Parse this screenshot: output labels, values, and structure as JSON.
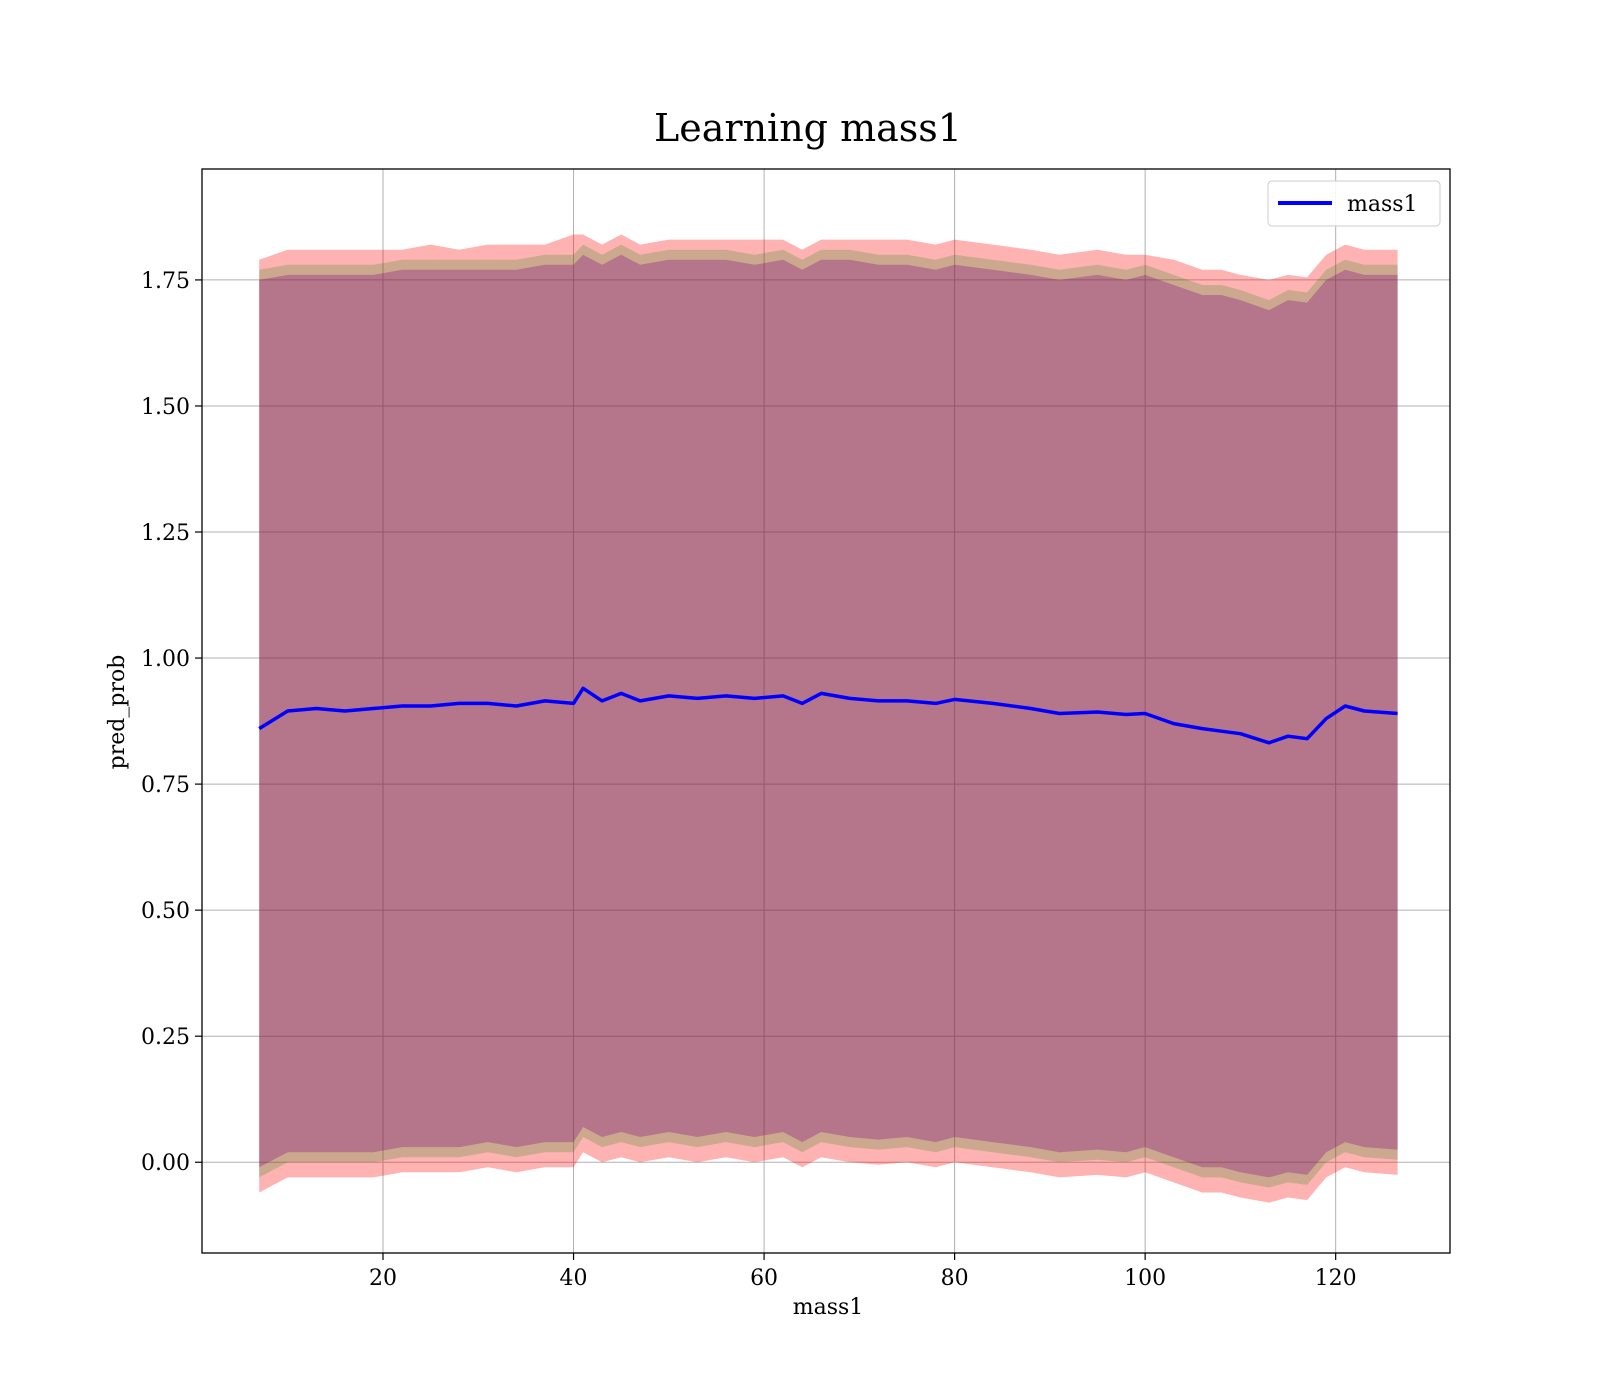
{
  "chart_data": {
    "type": "line",
    "title": "Learning mass1",
    "xlabel": "mass1",
    "ylabel": "pred_prob",
    "xlim": [
      1.0,
      132.0
    ],
    "ylim": [
      -0.18,
      1.97
    ],
    "xticks": [
      20,
      40,
      60,
      80,
      100,
      120
    ],
    "xtick_labels": [
      "20",
      "40",
      "60",
      "80",
      "100",
      "120"
    ],
    "yticks": [
      0.0,
      0.25,
      0.5,
      0.75,
      1.0,
      1.25,
      1.5,
      1.75
    ],
    "ytick_labels": [
      "0.00",
      "0.25",
      "0.50",
      "0.75",
      "1.00",
      "1.25",
      "1.50",
      "1.75"
    ],
    "grid": true,
    "legend_position": "top-right",
    "series": [
      {
        "name": "mass1",
        "color": "#0000ff",
        "x": [
          7,
          10,
          13,
          16,
          19,
          22,
          25,
          28,
          31,
          34,
          37,
          40,
          41,
          43,
          45,
          47,
          50,
          53,
          56,
          59,
          62,
          64,
          66,
          69,
          72,
          75,
          78,
          80,
          84,
          88,
          91,
          95,
          98,
          100,
          103,
          106,
          108,
          110,
          113,
          115,
          117,
          119,
          121,
          123,
          126.5
        ],
        "values": [
          0.86,
          0.895,
          0.9,
          0.895,
          0.9,
          0.905,
          0.905,
          0.91,
          0.91,
          0.905,
          0.915,
          0.91,
          0.94,
          0.915,
          0.93,
          0.915,
          0.925,
          0.92,
          0.925,
          0.92,
          0.925,
          0.91,
          0.93,
          0.92,
          0.915,
          0.915,
          0.91,
          0.918,
          0.91,
          0.9,
          0.89,
          0.893,
          0.888,
          0.89,
          0.87,
          0.86,
          0.855,
          0.85,
          0.832,
          0.845,
          0.84,
          0.88,
          0.905,
          0.895,
          0.89
        ]
      }
    ],
    "bands": [
      {
        "color": "#ff0000",
        "opacity": 0.3,
        "x": [
          7,
          10,
          13,
          16,
          19,
          22,
          25,
          28,
          31,
          34,
          37,
          40,
          41,
          43,
          45,
          47,
          50,
          53,
          56,
          59,
          62,
          64,
          66,
          69,
          72,
          75,
          78,
          80,
          84,
          88,
          91,
          95,
          98,
          100,
          103,
          106,
          108,
          110,
          113,
          115,
          117,
          119,
          121,
          123,
          126.5
        ],
        "upper": [
          1.79,
          1.81,
          1.81,
          1.81,
          1.81,
          1.81,
          1.82,
          1.81,
          1.82,
          1.82,
          1.82,
          1.84,
          1.84,
          1.82,
          1.84,
          1.82,
          1.83,
          1.83,
          1.83,
          1.83,
          1.83,
          1.81,
          1.83,
          1.83,
          1.83,
          1.83,
          1.82,
          1.83,
          1.82,
          1.81,
          1.8,
          1.81,
          1.8,
          1.8,
          1.79,
          1.77,
          1.77,
          1.76,
          1.75,
          1.76,
          1.755,
          1.8,
          1.82,
          1.81,
          1.81
        ],
        "lower": [
          -0.06,
          -0.03,
          -0.03,
          -0.03,
          -0.03,
          -0.02,
          -0.02,
          -0.02,
          -0.01,
          -0.02,
          -0.01,
          -0.01,
          0.02,
          0.0,
          0.01,
          0.0,
          0.01,
          0.0,
          0.01,
          0.0,
          0.01,
          -0.01,
          0.01,
          0.0,
          -0.005,
          0.0,
          -0.01,
          0.0,
          -0.01,
          -0.02,
          -0.03,
          -0.025,
          -0.03,
          -0.02,
          -0.04,
          -0.06,
          -0.06,
          -0.07,
          -0.08,
          -0.07,
          -0.075,
          -0.03,
          -0.01,
          -0.02,
          -0.025
        ]
      },
      {
        "color": "#008000",
        "opacity": 0.2,
        "x": [
          7,
          10,
          13,
          16,
          19,
          22,
          25,
          28,
          31,
          34,
          37,
          40,
          41,
          43,
          45,
          47,
          50,
          53,
          56,
          59,
          62,
          64,
          66,
          69,
          72,
          75,
          78,
          80,
          84,
          88,
          91,
          95,
          98,
          100,
          103,
          106,
          108,
          110,
          113,
          115,
          117,
          119,
          121,
          123,
          126.5
        ],
        "upper": [
          1.77,
          1.78,
          1.78,
          1.78,
          1.78,
          1.79,
          1.79,
          1.79,
          1.79,
          1.79,
          1.8,
          1.8,
          1.82,
          1.8,
          1.82,
          1.8,
          1.81,
          1.81,
          1.81,
          1.8,
          1.81,
          1.79,
          1.81,
          1.81,
          1.8,
          1.8,
          1.79,
          1.8,
          1.79,
          1.78,
          1.77,
          1.78,
          1.77,
          1.78,
          1.76,
          1.74,
          1.74,
          1.73,
          1.71,
          1.73,
          1.725,
          1.77,
          1.79,
          1.78,
          1.78
        ],
        "lower": [
          -0.03,
          0.0,
          0.0,
          0.0,
          0.0,
          0.01,
          0.01,
          0.01,
          0.02,
          0.01,
          0.02,
          0.02,
          0.05,
          0.03,
          0.04,
          0.03,
          0.04,
          0.03,
          0.04,
          0.03,
          0.04,
          0.02,
          0.04,
          0.03,
          0.025,
          0.03,
          0.02,
          0.03,
          0.02,
          0.01,
          0.0,
          0.005,
          0.0,
          0.01,
          -0.01,
          -0.03,
          -0.03,
          -0.04,
          -0.05,
          -0.04,
          -0.045,
          0.0,
          0.02,
          0.01,
          0.005
        ]
      },
      {
        "color": "#800080",
        "opacity": 0.3,
        "x": [
          7,
          10,
          13,
          16,
          19,
          22,
          25,
          28,
          31,
          34,
          37,
          40,
          41,
          43,
          45,
          47,
          50,
          53,
          56,
          59,
          62,
          64,
          66,
          69,
          72,
          75,
          78,
          80,
          84,
          88,
          91,
          95,
          98,
          100,
          103,
          106,
          108,
          110,
          113,
          115,
          117,
          119,
          121,
          123,
          126.5
        ],
        "upper": [
          1.75,
          1.76,
          1.76,
          1.76,
          1.76,
          1.77,
          1.77,
          1.77,
          1.77,
          1.77,
          1.78,
          1.78,
          1.8,
          1.78,
          1.8,
          1.78,
          1.79,
          1.79,
          1.79,
          1.78,
          1.79,
          1.77,
          1.79,
          1.79,
          1.78,
          1.78,
          1.77,
          1.78,
          1.77,
          1.76,
          1.75,
          1.76,
          1.75,
          1.76,
          1.74,
          1.72,
          1.72,
          1.71,
          1.69,
          1.71,
          1.705,
          1.75,
          1.77,
          1.76,
          1.76
        ],
        "lower": [
          -0.01,
          0.02,
          0.02,
          0.02,
          0.02,
          0.03,
          0.03,
          0.03,
          0.04,
          0.03,
          0.04,
          0.04,
          0.07,
          0.05,
          0.06,
          0.05,
          0.06,
          0.05,
          0.06,
          0.05,
          0.06,
          0.04,
          0.06,
          0.05,
          0.045,
          0.05,
          0.04,
          0.05,
          0.04,
          0.03,
          0.02,
          0.025,
          0.02,
          0.03,
          0.01,
          -0.01,
          -0.01,
          -0.02,
          -0.03,
          -0.02,
          -0.025,
          0.02,
          0.04,
          0.03,
          0.025
        ]
      }
    ]
  }
}
